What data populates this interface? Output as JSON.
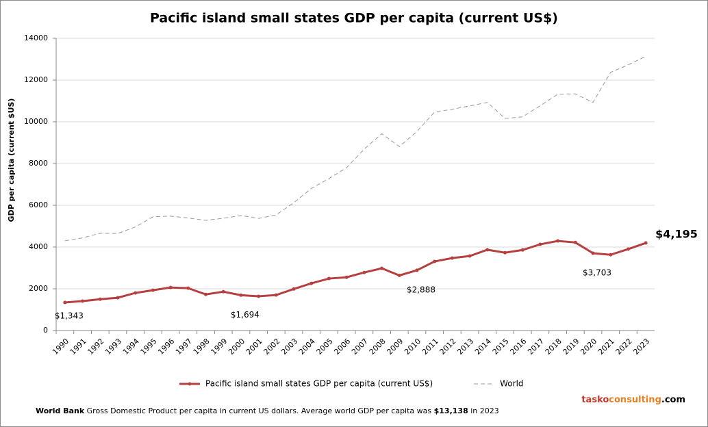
{
  "chart_data": {
    "type": "line",
    "title": "Pacific island small states GDP per capita (current US$)",
    "y_label": "GDP per capita (current $US)",
    "categories": [
      "1990",
      "1991",
      "1992",
      "1993",
      "1994",
      "1995",
      "1996",
      "1997",
      "1998",
      "1999",
      "2000",
      "2001",
      "2002",
      "2003",
      "2004",
      "2005",
      "2006",
      "2007",
      "2008",
      "2009",
      "2010",
      "2011",
      "2012",
      "2013",
      "2014",
      "2015",
      "2016",
      "2017",
      "2018",
      "2019",
      "2020",
      "2021",
      "2022",
      "2023"
    ],
    "series": [
      {
        "name": "Pacific island small states GDP per capita (current US$)",
        "color": "#b5403f",
        "style": "solid",
        "markers": true,
        "values": [
          1343,
          1410,
          1500,
          1570,
          1800,
          1930,
          2060,
          2030,
          1730,
          1860,
          1694,
          1640,
          1700,
          1990,
          2260,
          2490,
          2550,
          2780,
          2980,
          2640,
          2888,
          3310,
          3470,
          3570,
          3870,
          3730,
          3860,
          4130,
          4290,
          4220,
          3703,
          3630,
          3900,
          4195
        ],
        "value_labels": [
          "$1,343",
          null,
          null,
          null,
          null,
          null,
          null,
          null,
          null,
          null,
          "$1,694",
          null,
          null,
          null,
          null,
          null,
          null,
          null,
          null,
          null,
          "$2,888",
          null,
          null,
          null,
          null,
          null,
          null,
          null,
          null,
          null,
          "$3,703",
          null,
          null,
          "$4,195"
        ]
      },
      {
        "name": "World",
        "color": "#999999",
        "style": "dashed",
        "markers": false,
        "values": [
          4300,
          4440,
          4660,
          4650,
          4960,
          5450,
          5480,
          5390,
          5280,
          5380,
          5510,
          5370,
          5540,
          6120,
          6810,
          7280,
          7800,
          8690,
          9430,
          8810,
          9540,
          10470,
          10600,
          10760,
          10930,
          10160,
          10240,
          10770,
          11320,
          11340,
          10930,
          12370,
          12730,
          13138
        ]
      }
    ],
    "ylim": [
      0,
      14000
    ],
    "yticks": [
      0,
      2000,
      4000,
      6000,
      8000,
      10000,
      12000,
      14000
    ],
    "grid": true,
    "legend": "bottom"
  },
  "footer": {
    "source": "World Bank",
    "text": "Gross Domestic Product per capita in current US dollars.  Average world GDP per capita was",
    "highlight": "$13,138",
    "tail": "in 2023"
  },
  "brand": {
    "part1": "tasko",
    "part2": "consulting",
    "part3": ".com"
  }
}
